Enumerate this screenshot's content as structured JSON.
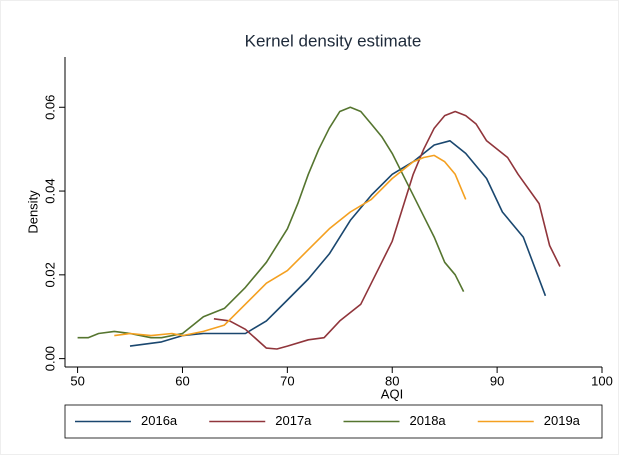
{
  "chart_data": {
    "type": "line",
    "title": "Kernel density estimate",
    "x_label": "AQI",
    "y_label": "Density",
    "xlim": [
      48.8,
      100
    ],
    "xticks": [
      50,
      60,
      70,
      80,
      90,
      100
    ],
    "ylim": [
      -0.002,
      0.072
    ],
    "yticks": [
      {
        "value": 0,
        "label": "0.00"
      },
      0.02,
      0.04,
      0.06
    ],
    "grid": false,
    "legend": "bottom",
    "series": [
      {
        "name": "2016a",
        "color": "#1a476f",
        "x": [
          55,
          58,
          60,
          62,
          66,
          68,
          70,
          72,
          74,
          76,
          78,
          80,
          82,
          84,
          85.5,
          87,
          89,
          90.5,
          92.5,
          94.6
        ],
        "values": [
          0.003,
          0.004,
          0.0055,
          0.006,
          0.006,
          0.009,
          0.014,
          0.019,
          0.025,
          0.033,
          0.039,
          0.044,
          0.047,
          0.051,
          0.052,
          0.049,
          0.043,
          0.035,
          0.029,
          0.015
        ]
      },
      {
        "name": "2017a",
        "color": "#90353b",
        "x": [
          63,
          64.5,
          66,
          68,
          69,
          70,
          72,
          73.5,
          75,
          77,
          78,
          80,
          81,
          82,
          83,
          84,
          85,
          86,
          87,
          88,
          89,
          91,
          92,
          94,
          95,
          96
        ],
        "values": [
          0.0095,
          0.009,
          0.007,
          0.0025,
          0.0023,
          0.003,
          0.0045,
          0.005,
          0.009,
          0.013,
          0.018,
          0.028,
          0.036,
          0.044,
          0.05,
          0.055,
          0.058,
          0.059,
          0.058,
          0.056,
          0.052,
          0.048,
          0.044,
          0.037,
          0.027,
          0.022
        ]
      },
      {
        "name": "2018a",
        "color": "#55752f",
        "x": [
          50,
          51,
          52,
          53.5,
          55,
          57,
          58,
          60,
          61,
          62,
          64,
          66,
          68,
          70,
          71,
          72,
          73,
          74,
          75,
          76,
          77,
          78,
          79,
          80,
          81,
          82,
          83,
          84,
          85,
          86,
          86.8
        ],
        "values": [
          0.005,
          0.005,
          0.006,
          0.0065,
          0.006,
          0.005,
          0.005,
          0.006,
          0.008,
          0.01,
          0.012,
          0.017,
          0.023,
          0.031,
          0.037,
          0.044,
          0.05,
          0.055,
          0.059,
          0.06,
          0.059,
          0.056,
          0.053,
          0.049,
          0.044,
          0.039,
          0.034,
          0.029,
          0.023,
          0.02,
          0.016
        ]
      },
      {
        "name": "2019a",
        "color": "#f4a020",
        "x": [
          53.5,
          55,
          57,
          59,
          60,
          62,
          64,
          66,
          68,
          70,
          72,
          74,
          76,
          78,
          80,
          82,
          83,
          84,
          85,
          86,
          87
        ],
        "values": [
          0.0055,
          0.006,
          0.0055,
          0.006,
          0.0055,
          0.0065,
          0.008,
          0.013,
          0.018,
          0.021,
          0.026,
          0.031,
          0.035,
          0.038,
          0.043,
          0.047,
          0.048,
          0.0485,
          0.047,
          0.044,
          0.038
        ]
      }
    ]
  }
}
